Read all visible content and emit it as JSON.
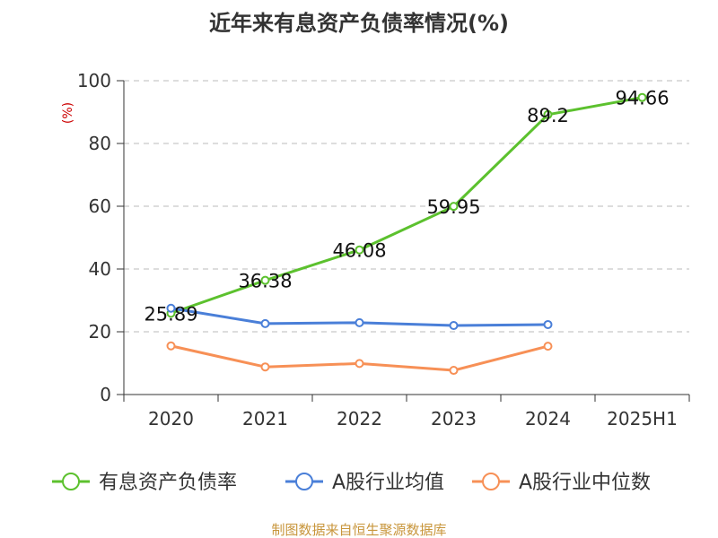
{
  "chart_data": {
    "type": "line",
    "title": "近年来有息资产负债率情况(%)",
    "ylabel": "(%)",
    "xlabel": "",
    "categories": [
      "2020",
      "2021",
      "2022",
      "2023",
      "2024",
      "2025H1"
    ],
    "ylim": [
      0,
      100
    ],
    "yticks": [
      0,
      20,
      40,
      60,
      80,
      100
    ],
    "grid": true,
    "legend_position": "bottom",
    "series": [
      {
        "name": "有息资产负债率",
        "color": "#5cc12e",
        "values": [
          25.89,
          36.38,
          46.08,
          59.95,
          89.2,
          94.66
        ],
        "labels": [
          "25.89",
          "36.38",
          "46.08",
          "59.95",
          "89.2",
          "94.66"
        ]
      },
      {
        "name": "A股行业均值",
        "color": "#4a7fd8",
        "values": [
          27.5,
          22.6,
          22.9,
          22.0,
          22.3,
          null
        ]
      },
      {
        "name": "A股行业中位数",
        "color": "#f79056",
        "values": [
          15.5,
          8.8,
          9.9,
          7.7,
          15.4,
          null
        ]
      }
    ],
    "source": "制图数据来自恒生聚源数据库"
  },
  "colors": {
    "title": "#333333",
    "ylabel": "#cc0000",
    "axis": "#333333",
    "grid": "#bbbbbb",
    "source": "#c8963c"
  }
}
